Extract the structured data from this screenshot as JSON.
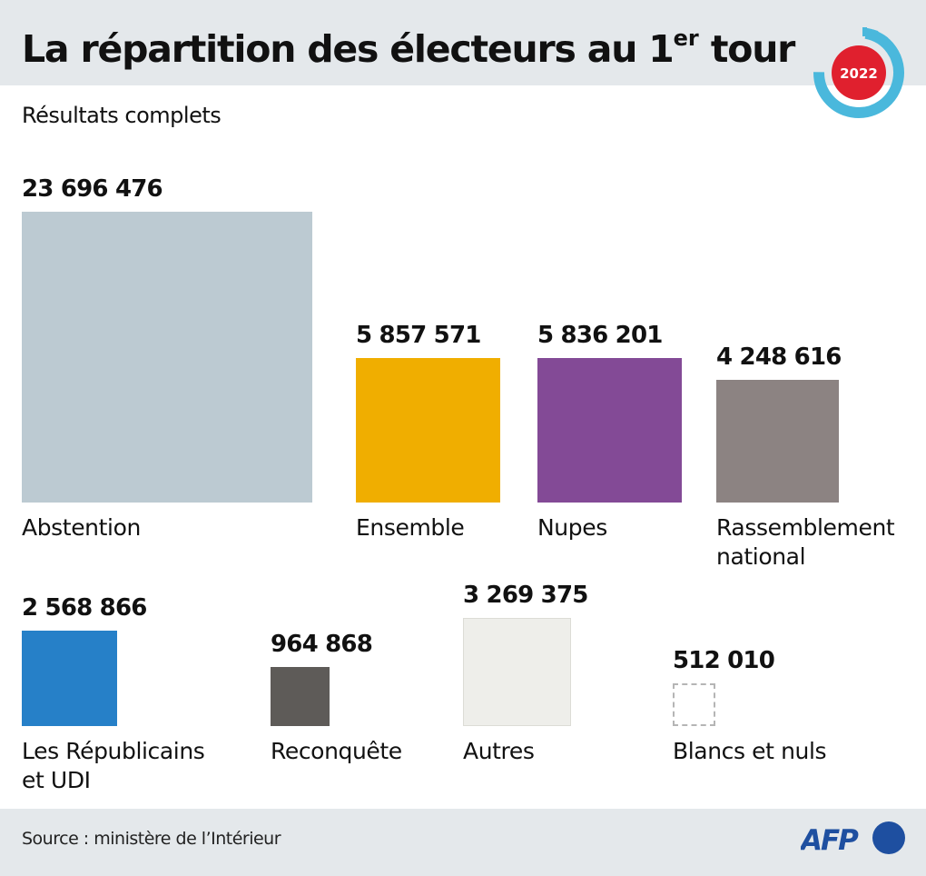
{
  "header": {
    "title_main": "La répartition des électeurs au 1",
    "title_sup": "er",
    "title_end": " tour",
    "subtitle": "Résultats complets",
    "badge_year": "2022"
  },
  "footer": {
    "source": "Source : ministère de l’Intérieur",
    "logo_text": "AFP"
  },
  "colors": {
    "header_bg": "#e4e8eb",
    "badge_ring": "#4ab8dc",
    "badge_center": "#e0202e",
    "afp_blue": "#1e4fa0"
  },
  "chart_data": {
    "type": "proportional-squares",
    "title": "La répartition des électeurs au 1er tour",
    "subtitle": "Résultats complets",
    "unit": "électeurs",
    "categories": [
      "Abstention",
      "Ensemble",
      "Nupes",
      "Rassemblement national",
      "Les Républicains et UDI",
      "Reconquête",
      "Autres",
      "Blancs et nuls"
    ],
    "items": [
      {
        "label": "Abstention",
        "label_lines": [
          "Abstention"
        ],
        "value": 23696476,
        "value_text": "23 696 476",
        "color": "#bccad2",
        "row": 1
      },
      {
        "label": "Ensemble",
        "label_lines": [
          "Ensemble"
        ],
        "value": 5857571,
        "value_text": "5 857 571",
        "color": "#f0ae00",
        "row": 1
      },
      {
        "label": "Nupes",
        "label_lines": [
          "Nupes"
        ],
        "value": 5836201,
        "value_text": "5 836 201",
        "color": "#834a96",
        "row": 1
      },
      {
        "label": "Rassemblement national",
        "label_lines": [
          "Rassemblement",
          "national"
        ],
        "value": 4248616,
        "value_text": "4 248 616",
        "color": "#8c8382",
        "row": 1
      },
      {
        "label": "Les Républicains et UDI",
        "label_lines": [
          "Les Républicains",
          "et UDI"
        ],
        "value": 2568866,
        "value_text": "2 568 866",
        "color": "#2680c8",
        "row": 2
      },
      {
        "label": "Reconquête",
        "label_lines": [
          "Reconquête"
        ],
        "value": 964868,
        "value_text": "964 868",
        "color": "#5e5b58",
        "row": 2
      },
      {
        "label": "Autres",
        "label_lines": [
          "Autres"
        ],
        "value": 3269375,
        "value_text": "3 269 375",
        "color": "#eeeeea",
        "row": 2
      },
      {
        "label": "Blancs et nuls",
        "label_lines": [
          "Blancs et nuls"
        ],
        "value": 512010,
        "value_text": "512 010",
        "color": "none",
        "dashed": true,
        "row": 2
      }
    ],
    "source": "Source : ministère de l’Intérieur"
  }
}
